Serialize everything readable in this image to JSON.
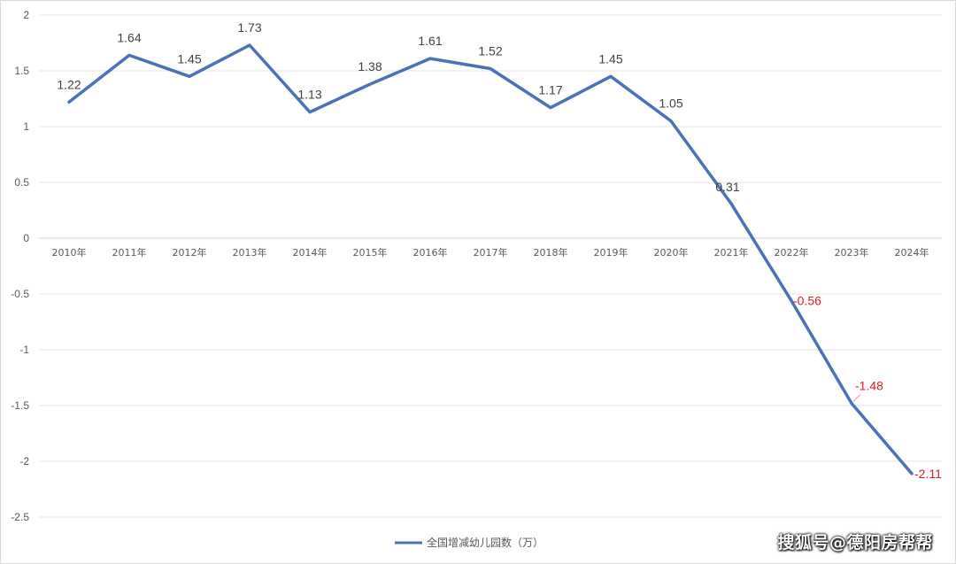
{
  "chart_data": {
    "type": "line",
    "categories": [
      "2010年",
      "2011年",
      "2012年",
      "2013年",
      "2014年",
      "2015年",
      "2016年",
      "2017年",
      "2018年",
      "2019年",
      "2020年",
      "2021年",
      "2022年",
      "2023年",
      "2024年"
    ],
    "series": [
      {
        "name": "全国增减幼儿园数（万）",
        "values": [
          1.22,
          1.64,
          1.45,
          1.73,
          1.13,
          1.38,
          1.61,
          1.52,
          1.17,
          1.45,
          1.05,
          0.31,
          -0.56,
          -1.48,
          -2.11
        ],
        "data_labels": [
          "1.22",
          "1.64",
          "1.45",
          "1.73",
          "1.13",
          "1.38",
          "1.61",
          "1.52",
          "1.17",
          "1.45",
          "1.05",
          "0.31",
          "-0.56",
          "-1.48",
          "-2.11"
        ]
      }
    ],
    "ylim": [
      -2.5,
      2
    ],
    "yticks": [
      2,
      1.5,
      1,
      0.5,
      0,
      -0.5,
      -1,
      -1.5,
      -2,
      -2.5
    ],
    "ytick_labels": [
      "2",
      "1.5",
      "1",
      "0.5",
      "0",
      "-0.5",
      "-1",
      "-1.5",
      "-2",
      "-2.5"
    ],
    "grid": true,
    "legend_position": "bottom",
    "colors": {
      "line": "#4a72b8",
      "positive_label": "#404040",
      "negative_label": "#e02020",
      "grid": "#e6e6e6",
      "zero_axis": "#d0d0d0"
    }
  },
  "watermark": "搜狐号@德阳房帮帮"
}
